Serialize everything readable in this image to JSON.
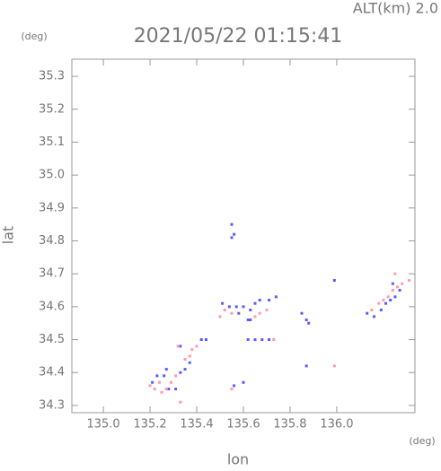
{
  "chart_data": {
    "type": "scatter",
    "title": "2021/05/22 01:15:41",
    "annotation": "ALT(km) 2.0",
    "y_unit": "(deg)",
    "x_unit": "(deg)",
    "xlabel": "lon",
    "ylabel": "lat",
    "xlim": [
      134.865,
      136.335
    ],
    "ylim": [
      34.278,
      35.352
    ],
    "xticks": [
      {
        "value": 135.0,
        "label": "135.0"
      },
      135.2,
      135.4,
      135.6,
      135.8,
      {
        "value": 136.0,
        "label": "136.0"
      }
    ],
    "yticks": [
      34.3,
      34.4,
      34.5,
      34.6,
      34.7,
      34.8,
      34.9,
      {
        "value": 35.0,
        "label": "35.0"
      },
      35.1,
      35.2,
      35.3
    ],
    "series": [
      {
        "color": "#5a5aff",
        "x": [
          135.55,
          135.56,
          135.55,
          135.51,
          135.54,
          135.57,
          135.6,
          135.63,
          135.65,
          135.62,
          135.63,
          135.58,
          135.67,
          135.71,
          135.74,
          135.62,
          135.65,
          135.68,
          135.71,
          135.44,
          135.42,
          135.33,
          135.37,
          135.21,
          135.23,
          135.26,
          135.28,
          135.31,
          135.33,
          135.35,
          135.27,
          135.56,
          135.6,
          135.85,
          135.87,
          135.88,
          135.99,
          136.13,
          136.16,
          136.19,
          136.21,
          136.23,
          136.25,
          136.27,
          136.24,
          135.87
        ],
        "y": [
          34.85,
          34.82,
          34.81,
          34.61,
          34.6,
          34.6,
          34.6,
          34.59,
          34.61,
          34.56,
          34.56,
          34.58,
          34.62,
          34.62,
          34.63,
          34.5,
          34.5,
          34.5,
          34.5,
          34.5,
          34.5,
          34.48,
          34.43,
          34.37,
          34.39,
          34.39,
          34.35,
          34.35,
          34.4,
          34.41,
          34.41,
          34.36,
          34.37,
          34.58,
          34.56,
          34.55,
          34.68,
          34.58,
          34.57,
          34.59,
          34.61,
          34.62,
          34.63,
          34.65,
          34.67,
          34.42
        ]
      },
      {
        "color": "#ff9aa8",
        "x": [
          135.5,
          135.52,
          135.55,
          135.65,
          135.67,
          135.7,
          135.73,
          135.32,
          135.35,
          135.37,
          135.38,
          135.4,
          135.2,
          135.22,
          135.24,
          135.27,
          135.29,
          135.31,
          135.25,
          135.33,
          135.55,
          135.99,
          136.15,
          136.18,
          136.2,
          136.22,
          136.24,
          136.26,
          136.28,
          136.31,
          136.25
        ],
        "y": [
          34.57,
          34.59,
          34.58,
          34.57,
          34.58,
          34.59,
          34.5,
          34.48,
          34.44,
          34.45,
          34.47,
          34.48,
          34.36,
          34.35,
          34.37,
          34.35,
          34.37,
          34.39,
          34.34,
          34.31,
          34.35,
          34.42,
          34.59,
          34.61,
          34.62,
          34.63,
          34.65,
          34.66,
          34.67,
          34.68,
          34.7
        ]
      }
    ]
  }
}
